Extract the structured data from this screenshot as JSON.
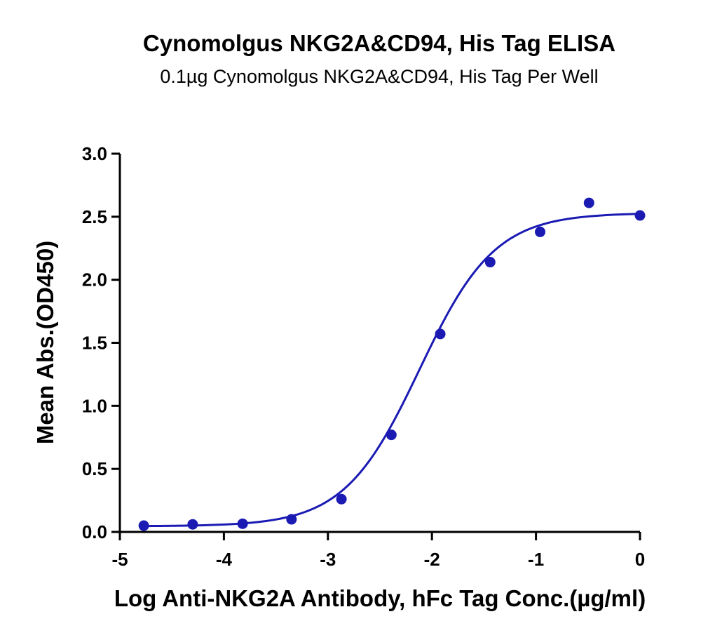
{
  "chart_data": {
    "type": "scatter",
    "title": "Cynomolgus NKG2A&CD94, His Tag ELISA",
    "subtitle": "0.1µg Cynomolgus NKG2A&CD94, His Tag Per Well",
    "xlabel": "Log Anti-NKG2A Antibody, hFc Tag Conc.(µg/ml)",
    "ylabel": "Mean Abs.(OD450)",
    "xlim": [
      -5,
      0
    ],
    "ylim": [
      0,
      3.0
    ],
    "x_ticks": [
      -5,
      -4,
      -3,
      -2,
      -1,
      0
    ],
    "x_tick_labels": [
      "-5",
      "-4",
      "-3",
      "-2",
      "-1",
      "0"
    ],
    "y_ticks": [
      0,
      0.5,
      1.0,
      1.5,
      2.0,
      2.5,
      3.0
    ],
    "y_tick_labels": [
      "0.0",
      "0.5",
      "1.0",
      "1.5",
      "2.0",
      "2.5",
      "3.0"
    ],
    "grid": false,
    "legend": "none",
    "color": "#1b1bb4",
    "series": [
      {
        "x": [
          -4.77,
          -4.3,
          -3.82,
          -3.35,
          -2.87,
          -2.39,
          -1.92,
          -1.44,
          -0.96,
          -0.49,
          0.0
        ],
        "values": [
          0.05,
          0.06,
          0.065,
          0.1,
          0.26,
          0.77,
          1.57,
          2.14,
          2.38,
          2.61,
          2.51
        ]
      }
    ],
    "fit_curve": {
      "type": "4PL",
      "bottom": 0.045,
      "top": 2.53,
      "log_ec50": -2.12,
      "hill_slope": 1.2
    }
  }
}
